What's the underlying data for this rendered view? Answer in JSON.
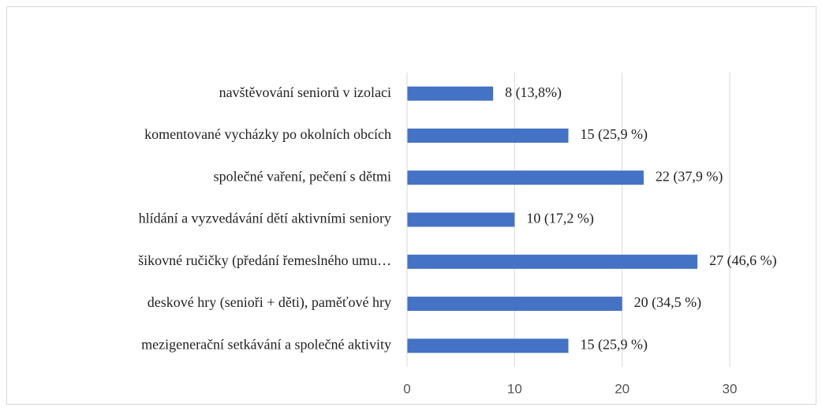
{
  "chart_data": {
    "type": "bar",
    "orientation": "horizontal",
    "categories": [
      "navštěvování seniorů v izolaci",
      "komentované vycházky po okolních obcích",
      "společné vaření, pečení s dětmi",
      "hlídání a vyzvedávání dětí aktivními seniory",
      "šikovné ručičky (předání řemeslného umu…",
      "deskové hry (senioři + děti), paměťové hry",
      "mezigenerační setkávání a společné aktivity"
    ],
    "values": [
      8,
      15,
      22,
      10,
      27,
      20,
      15
    ],
    "value_labels": [
      "8 (13,8%)",
      "15 (25,9 %)",
      "22 (37,9 %)",
      "10 (17,2 %)",
      "27 (46,6 %)",
      "20 (34,5 %)",
      "15 (25,9 %)"
    ],
    "color": "#4472c4",
    "xlim": [
      0,
      30
    ],
    "xticks": [
      0,
      10,
      20,
      30
    ],
    "grid": true
  }
}
